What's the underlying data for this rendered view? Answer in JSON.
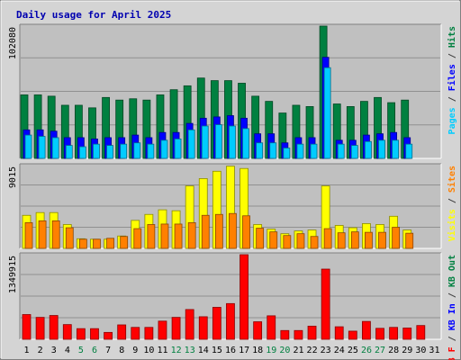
{
  "chart_data": [
    {
      "type": "bar",
      "title": "Daily usage for April 2025",
      "ymax_label": "102080",
      "ylim": [
        0,
        102080
      ],
      "side_label": [
        {
          "text": "Pages",
          "color": "#00ccff"
        },
        {
          "text": " / ",
          "color": "#404040"
        },
        {
          "text": "Files",
          "color": "#0000ff"
        },
        {
          "text": " / ",
          "color": "#404040"
        },
        {
          "text": "Hits",
          "color": "#008040"
        }
      ],
      "categories": [
        "1",
        "2",
        "3",
        "4",
        "5",
        "6",
        "7",
        "8",
        "9",
        "10",
        "11",
        "12",
        "13",
        "14",
        "15",
        "16",
        "17",
        "18",
        "19",
        "20",
        "21",
        "22",
        "23",
        "24",
        "25",
        "26",
        "27",
        "28",
        "29",
        "30",
        "31"
      ],
      "weekend_days": [
        5,
        6,
        12,
        13,
        19,
        20,
        26,
        27
      ],
      "series": [
        {
          "name": "Hits",
          "color": "#008040",
          "values": [
            49000,
            49000,
            48000,
            41000,
            41000,
            39000,
            47000,
            45000,
            46000,
            45000,
            49000,
            53000,
            56000,
            62000,
            60000,
            60000,
            58000,
            48000,
            44000,
            35000,
            41000,
            40000,
            102080,
            42000,
            40000,
            44000,
            47000,
            43000,
            45000,
            0,
            0
          ]
        },
        {
          "name": "Files",
          "color": "#0000ff",
          "values": [
            22000,
            22000,
            21000,
            16000,
            16000,
            15000,
            16000,
            16000,
            18000,
            16000,
            20000,
            20000,
            27000,
            31000,
            32000,
            33000,
            31000,
            19000,
            19000,
            12000,
            16000,
            16000,
            78000,
            14000,
            14000,
            18000,
            19000,
            20000,
            16000,
            0,
            0
          ]
        },
        {
          "name": "Pages",
          "color": "#00ccff",
          "values": [
            18000,
            17000,
            16000,
            10000,
            9000,
            11000,
            10000,
            11000,
            12000,
            11000,
            14000,
            15000,
            22000,
            25000,
            26000,
            25000,
            23000,
            12000,
            12000,
            8000,
            11000,
            11000,
            70000,
            11000,
            10000,
            13000,
            14000,
            14000,
            11000,
            0,
            0
          ]
        }
      ]
    },
    {
      "type": "bar",
      "ymax_label": "9015",
      "ylim": [
        0,
        9015
      ],
      "side_label": [
        {
          "text": "Visits",
          "color": "#ffff00"
        },
        {
          "text": " / ",
          "color": "#404040"
        },
        {
          "text": "Sites",
          "color": "#ff8000"
        }
      ],
      "series": [
        {
          "name": "Visits",
          "color": "#ffff00",
          "values": [
            3600,
            3900,
            3900,
            2600,
            1050,
            1000,
            1000,
            1350,
            3050,
            3700,
            4200,
            4100,
            6800,
            7600,
            8400,
            8950,
            8700,
            2600,
            2100,
            1600,
            1900,
            2000,
            6800,
            2500,
            2250,
            2700,
            2600,
            3500,
            2000,
            0,
            0
          ]
        },
        {
          "name": "Sites",
          "color": "#ff8000",
          "values": [
            2800,
            3000,
            3000,
            2250,
            1000,
            1000,
            1100,
            1300,
            2150,
            2600,
            2650,
            2650,
            2800,
            3600,
            3700,
            3800,
            3550,
            2200,
            1800,
            1400,
            1600,
            1300,
            2150,
            1700,
            1800,
            1750,
            1750,
            2300,
            1650,
            0,
            0
          ]
        }
      ]
    },
    {
      "type": "bar",
      "ymax_label": "1349915",
      "ylim": [
        0,
        1349915
      ],
      "side_label": [
        {
          "text": "KB F",
          "color": "#ff0000"
        },
        {
          "text": " / ",
          "color": "#404040"
        },
        {
          "text": "KB In",
          "color": "#0000ff"
        },
        {
          "text": " / ",
          "color": "#404040"
        },
        {
          "text": "KB Out",
          "color": "#008040"
        }
      ],
      "series": [
        {
          "name": "KB F",
          "color": "#ff0000",
          "values": [
            395000,
            350000,
            380000,
            235000,
            170000,
            170000,
            110000,
            230000,
            190000,
            190000,
            290000,
            350000,
            475000,
            360000,
            510000,
            570000,
            1349915,
            280000,
            375000,
            140000,
            140000,
            210000,
            1120000,
            200000,
            130000,
            285000,
            175000,
            190000,
            180000,
            220000,
            0
          ]
        }
      ]
    }
  ]
}
